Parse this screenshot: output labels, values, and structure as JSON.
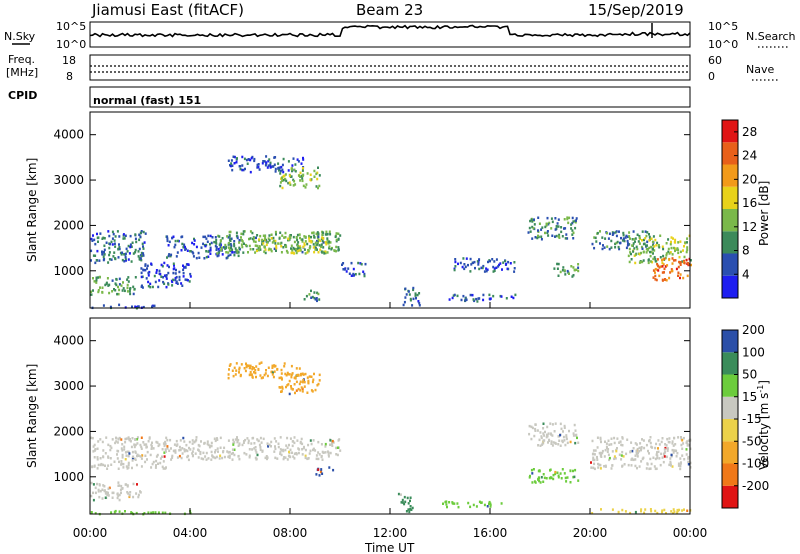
{
  "header": {
    "station": "Jiamusi East (fitACF)",
    "beam": "Beam 23",
    "date": "15/Sep/2019"
  },
  "strips": {
    "nsky": {
      "label": "N.Sky",
      "ticks_left": [
        "10^5",
        "10^0"
      ],
      "right_label": "N.Search",
      "ticks_right": [
        "10^5",
        "10^0"
      ]
    },
    "freq": {
      "label_line1": "Freq.",
      "label_line2": "[MHz]",
      "ticks_left": [
        "18",
        "8"
      ],
      "right_label": "Nave",
      "ticks_right": [
        "60",
        "0"
      ]
    },
    "cpid": {
      "label": "CPID",
      "value": "normal (fast) 151"
    }
  },
  "colors": {
    "power": [
      "#1e1ef0",
      "#2a4fb0",
      "#3b8a5a",
      "#7ab84a",
      "#e8d21a",
      "#f29a1a",
      "#e8601a",
      "#e01414"
    ],
    "velocity": [
      "#e01414",
      "#f07818",
      "#f2a82a",
      "#ebd24a",
      "#c8c8c0",
      "#6ccc3c",
      "#3a8c5a",
      "#2b4fa8"
    ]
  },
  "chart_data": [
    {
      "type": "heatmap",
      "panel": "power",
      "ylabel": "Slant Range [km]",
      "yticks": [
        "1000",
        "2000",
        "3000",
        "4000"
      ],
      "ylim": [
        180,
        4500
      ],
      "xlim_hours": [
        0,
        24
      ],
      "colorbar": {
        "label": "Power [dB]",
        "ticks": [
          "4",
          "8",
          "12",
          "16",
          "20",
          "24",
          "28"
        ],
        "range": [
          0,
          30
        ]
      },
      "regions": [
        {
          "t": [
            0.0,
            2.2
          ],
          "r": [
            1200,
            1900
          ],
          "v": 7
        },
        {
          "t": [
            0.0,
            1.8
          ],
          "r": [
            500,
            900
          ],
          "v": 11
        },
        {
          "t": [
            0.0,
            2.6
          ],
          "r": [
            200,
            280
          ],
          "v": 5
        },
        {
          "t": [
            2.0,
            4.0
          ],
          "r": [
            650,
            1200
          ],
          "v": 5
        },
        {
          "t": [
            3.0,
            6.0
          ],
          "r": [
            1300,
            1800
          ],
          "v": 6
        },
        {
          "t": [
            5.0,
            10.0
          ],
          "r": [
            1400,
            1900
          ],
          "v": 11
        },
        {
          "t": [
            6.5,
            9.5
          ],
          "r": [
            1400,
            1800
          ],
          "v": 14
        },
        {
          "t": [
            5.5,
            8.5
          ],
          "r": [
            3200,
            3550
          ],
          "v": 5
        },
        {
          "t": [
            7.5,
            9.2
          ],
          "r": [
            2850,
            3300
          ],
          "v": 13
        },
        {
          "t": [
            8.5,
            9.2
          ],
          "r": [
            350,
            600
          ],
          "v": 8
        },
        {
          "t": [
            10.0,
            11.0
          ],
          "r": [
            900,
            1200
          ],
          "v": 5
        },
        {
          "t": [
            12.5,
            13.2
          ],
          "r": [
            250,
            650
          ],
          "v": 7
        },
        {
          "t": [
            14.2,
            17.0
          ],
          "r": [
            350,
            500
          ],
          "v": 6
        },
        {
          "t": [
            14.5,
            17.0
          ],
          "r": [
            1000,
            1300
          ],
          "v": 5
        },
        {
          "t": [
            17.5,
            19.5
          ],
          "r": [
            1700,
            2200
          ],
          "v": 9
        },
        {
          "t": [
            18.5,
            19.5
          ],
          "r": [
            900,
            1200
          ],
          "v": 11
        },
        {
          "t": [
            20.0,
            22.5
          ],
          "r": [
            1500,
            1900
          ],
          "v": 8
        },
        {
          "t": [
            21.5,
            24.0
          ],
          "r": [
            1200,
            1800
          ],
          "v": 13
        },
        {
          "t": [
            22.5,
            24.0
          ],
          "r": [
            800,
            1300
          ],
          "v": 24
        }
      ]
    },
    {
      "type": "heatmap",
      "panel": "velocity",
      "ylabel": "Slant Range [km]",
      "yticks": [
        "1000",
        "2000",
        "3000",
        "4000"
      ],
      "ylim": [
        180,
        4500
      ],
      "xlim_hours": [
        0,
        24
      ],
      "xticks": [
        "00:00",
        "04:00",
        "08:00",
        "12:00",
        "16:00",
        "20:00",
        "00:00"
      ],
      "xlabel": "Time UT",
      "colorbar": {
        "label": "Velocity [m s",
        "label_sup": "-1",
        "label_end": "]",
        "ticks": [
          "-200",
          "-100",
          "-50",
          "-15",
          "15",
          "50",
          "100",
          "200"
        ]
      },
      "regions": [
        {
          "t": [
            0.0,
            3.0
          ],
          "r": [
            1200,
            1900
          ],
          "c": 4
        },
        {
          "t": [
            0.0,
            2.0
          ],
          "r": [
            500,
            900
          ],
          "c": 4
        },
        {
          "t": [
            0.0,
            4.0
          ],
          "r": [
            200,
            280
          ],
          "c": 5
        },
        {
          "t": [
            3.0,
            10.0
          ],
          "r": [
            1400,
            1900
          ],
          "c": 4
        },
        {
          "t": [
            5.5,
            8.5
          ],
          "r": [
            3200,
            3550
          ],
          "c": 2
        },
        {
          "t": [
            7.5,
            9.2
          ],
          "r": [
            2850,
            3300
          ],
          "c": 2
        },
        {
          "t": [
            9.0,
            9.7
          ],
          "r": [
            1050,
            1250
          ],
          "c": 7
        },
        {
          "t": [
            12.3,
            12.9
          ],
          "r": [
            250,
            650
          ],
          "c": 6
        },
        {
          "t": [
            14.0,
            16.5
          ],
          "r": [
            350,
            480
          ],
          "c": 5
        },
        {
          "t": [
            17.5,
            19.5
          ],
          "r": [
            1700,
            2200
          ],
          "c": 4
        },
        {
          "t": [
            17.5,
            19.5
          ],
          "r": [
            900,
            1200
          ],
          "c": 5
        },
        {
          "t": [
            20.0,
            24.0
          ],
          "r": [
            1200,
            1900
          ],
          "c": 4
        },
        {
          "t": [
            20.0,
            24.0
          ],
          "r": [
            220,
            320
          ],
          "c": 3
        }
      ]
    }
  ]
}
